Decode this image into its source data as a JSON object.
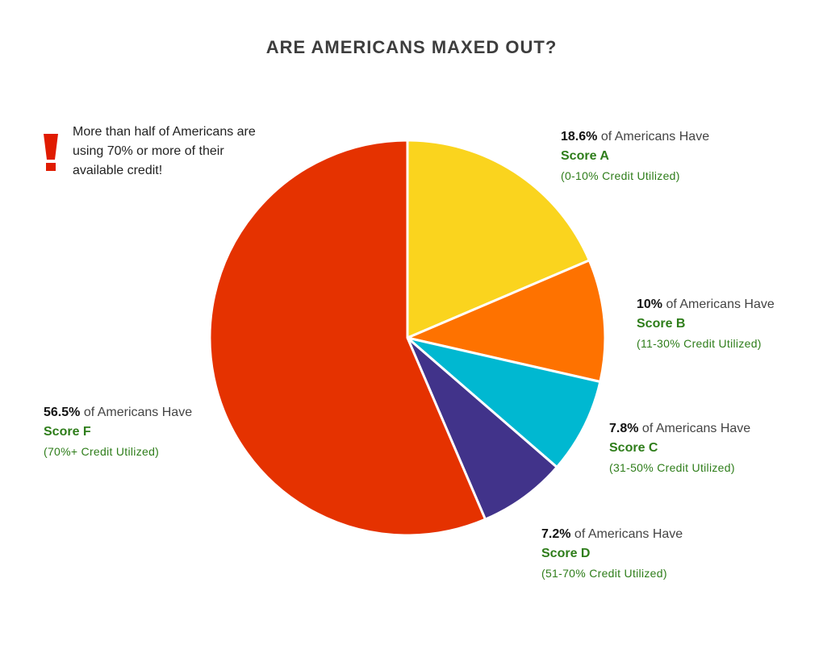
{
  "callout": {
    "text": "More than half of Americans are using 70% or more of their available credit!",
    "icon": "exclamation-icon",
    "icon_color": "#e01b00"
  },
  "chart_data": {
    "type": "pie",
    "title": "ARE AMERICANS MAXED OUT?",
    "slices": [
      {
        "key": "a",
        "value": 18.6,
        "pct_label": "18.6%",
        "suffix": " of Americans Have",
        "score": "Score A",
        "range": "(0-10% Credit Utilized)",
        "color": "#fad41e"
      },
      {
        "key": "b",
        "value": 10,
        "pct_label": "10%",
        "suffix": " of Americans Have",
        "score": "Score B",
        "range": "(11-30% Credit Utilized)",
        "color": "#fe7200"
      },
      {
        "key": "c",
        "value": 7.8,
        "pct_label": "7.8%",
        "suffix": " of Americans Have",
        "score": "Score C",
        "range": "(31-50% Credit Utilized)",
        "color": "#00b8d1"
      },
      {
        "key": "d",
        "value": 7.2,
        "pct_label": "7.2%",
        "suffix": " of Americans Have",
        "score": "Score D",
        "range": "(51-70% Credit Utilized)",
        "color": "#41338a"
      },
      {
        "key": "f",
        "value": 56.5,
        "pct_label": "56.5%",
        "suffix": " of Americans Have",
        "score": "Score F",
        "range": "(70%+ Credit Utilized)",
        "color": "#e53200"
      }
    ],
    "start": "12 o'clock",
    "direction": "clockwise"
  }
}
